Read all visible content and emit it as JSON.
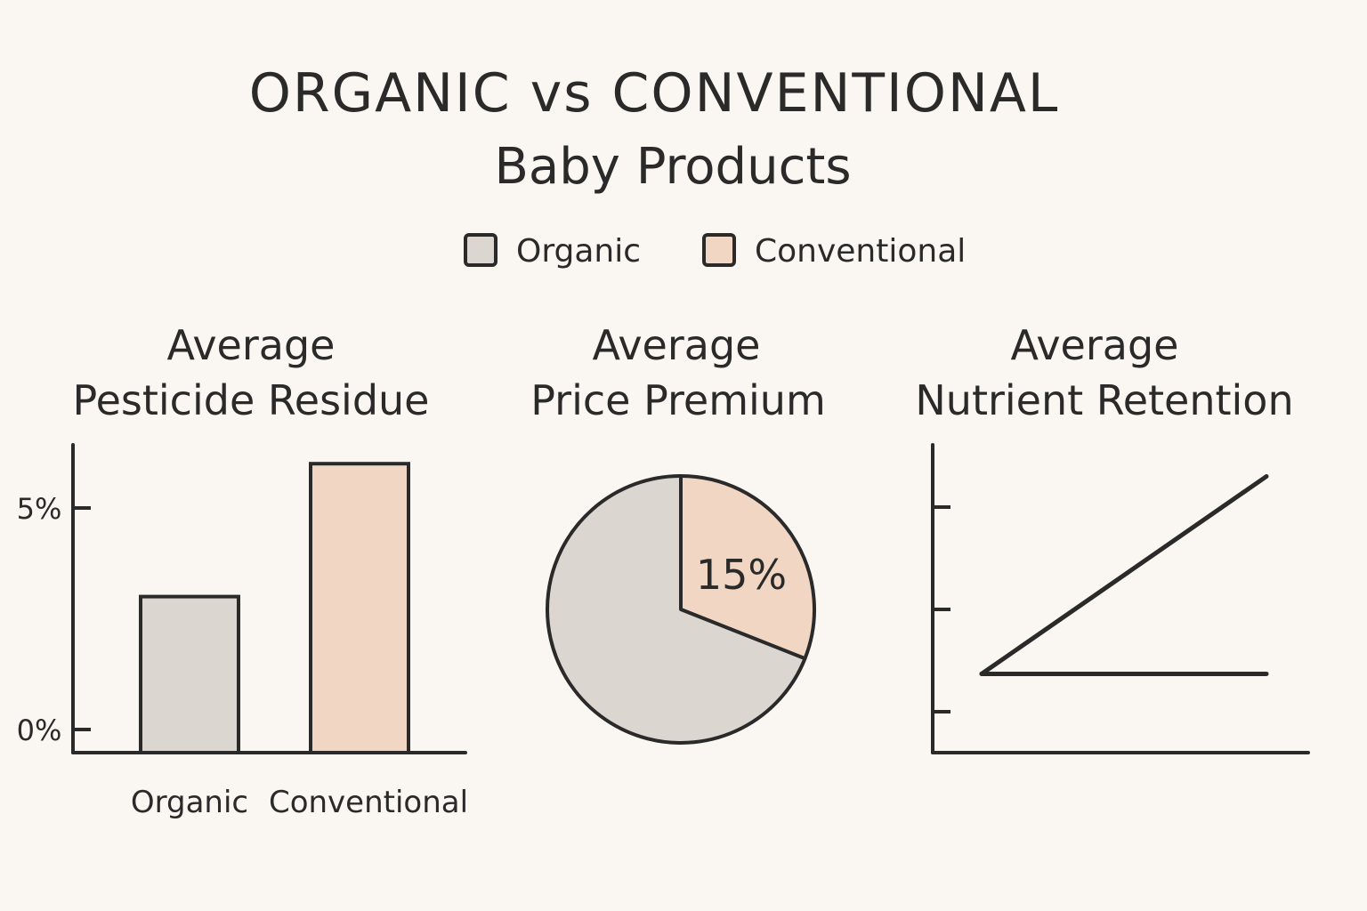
{
  "title": {
    "line1": "ORGANIC vs CONVENTIONAL",
    "line2": "Baby Products"
  },
  "legend": {
    "placement": "top-center",
    "items": [
      {
        "label": "Organic",
        "color": "#dcd6d1"
      },
      {
        "label": "Conventional",
        "color": "#f0d6c3"
      }
    ]
  },
  "colors": {
    "background": "#faf6f1",
    "ink": "#2a2a2a",
    "organic": "#dcd6d1",
    "conventional": "#f0d6c3"
  },
  "chart_data": [
    {
      "type": "bar",
      "title_line1": "Average",
      "title_line2": "Pesticide Residue",
      "categories": [
        "Organic",
        "Conventional"
      ],
      "values": [
        3,
        6
      ],
      "unit": "%",
      "yticks": [
        "0%",
        "5%"
      ],
      "ytick_values": [
        0,
        5
      ],
      "ylim": [
        -1,
        6.5
      ],
      "grid": false
    },
    {
      "type": "pie",
      "title_line1": "Average",
      "title_line2": "Price Premium",
      "slices": [
        {
          "name": "Conventional",
          "value": 31,
          "label": "15%"
        },
        {
          "name": "Organic",
          "value": 69,
          "label": ""
        }
      ],
      "grid": false
    },
    {
      "type": "line",
      "title_line1": "Average",
      "title_line2": "Nutrient Retention",
      "x": [
        0,
        1
      ],
      "series": [
        {
          "name": "",
          "values": [
            0.37,
            2.3
          ]
        },
        {
          "name": "",
          "values": [
            0.37,
            0.37
          ]
        }
      ],
      "ytick_count": 3,
      "ylim": [
        -0.2,
        2.6
      ],
      "grid": false
    }
  ]
}
